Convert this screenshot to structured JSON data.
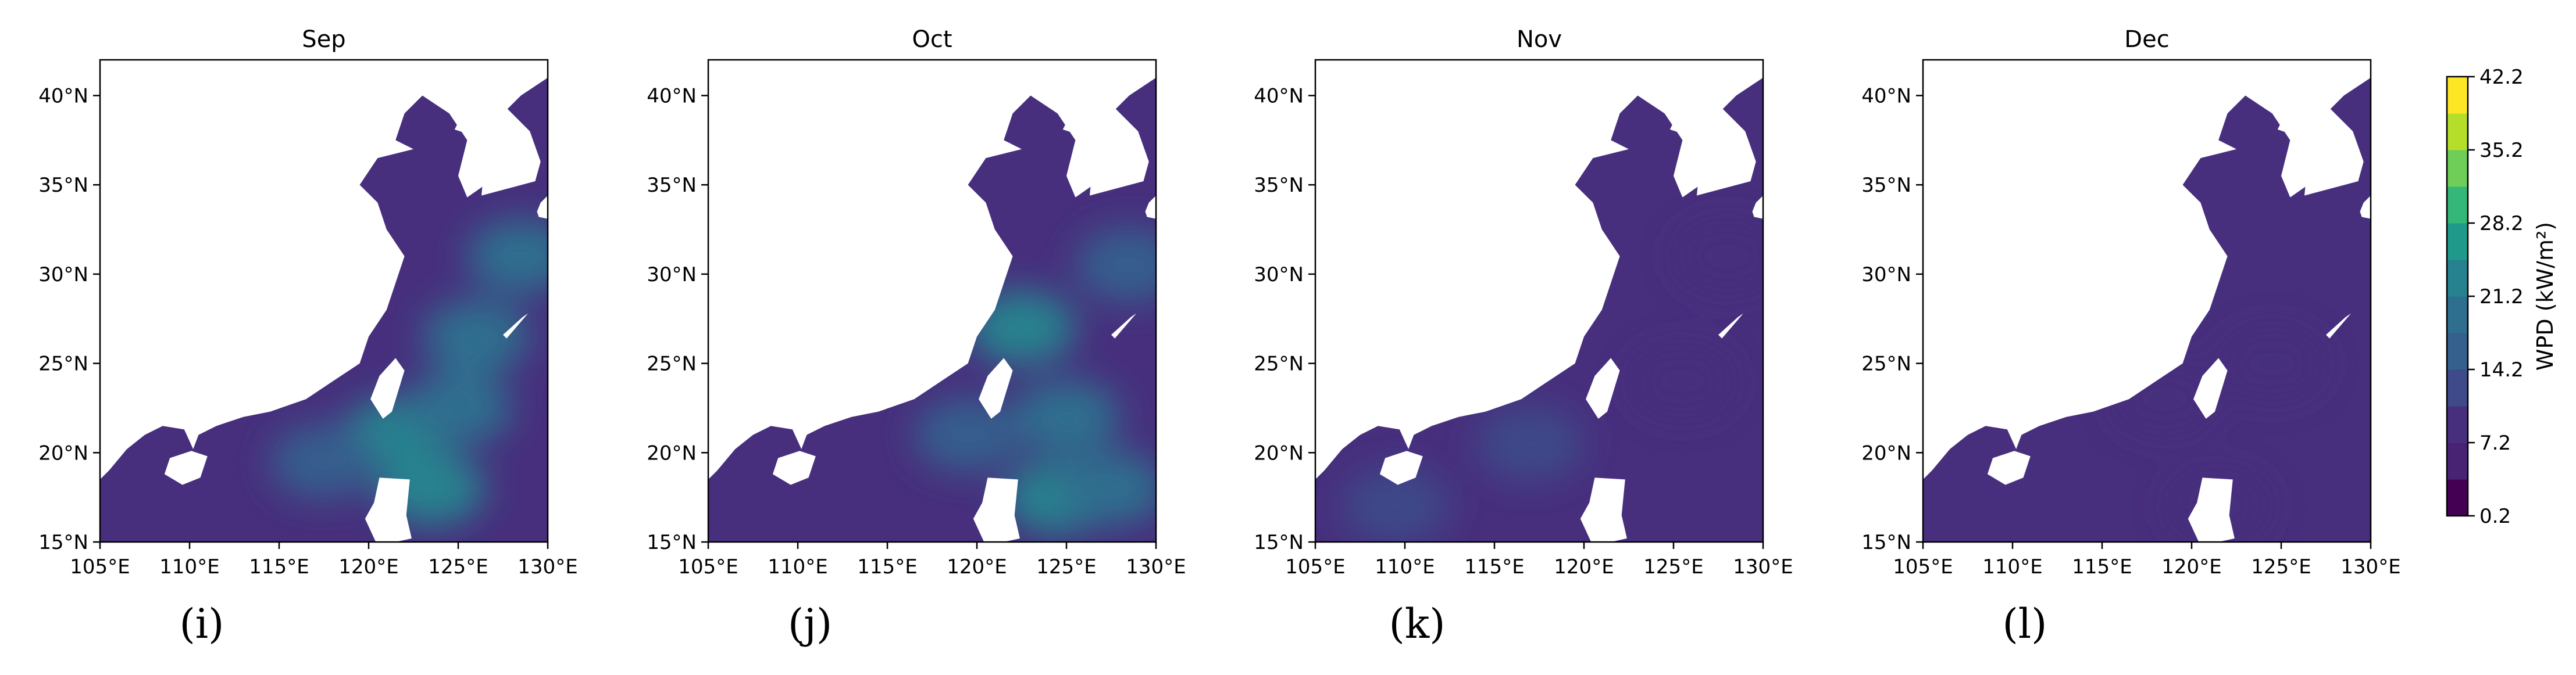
{
  "chart_data": [
    {
      "type": "heatmap",
      "title": "Sep",
      "panel_label": "(i)",
      "xlim": [
        105,
        130
      ],
      "ylim": [
        15,
        42
      ],
      "x_ticks": [
        "105°E",
        "110°E",
        "115°E",
        "120°E",
        "125°E",
        "130°E"
      ],
      "y_ticks": [
        "15°N",
        "20°N",
        "25°N",
        "30°N",
        "35°N",
        "40°N"
      ],
      "hotspots": [
        {
          "lon": 121.5,
          "lat": 21.0,
          "value": 21.2
        },
        {
          "lon": 123.5,
          "lat": 18.0,
          "value": 21.2
        },
        {
          "lon": 126.0,
          "lat": 26.5,
          "value": 17.7
        },
        {
          "lon": 128.5,
          "lat": 31.0,
          "value": 17.7
        },
        {
          "lon": 117.5,
          "lat": 19.5,
          "value": 14.2
        },
        {
          "lon": 125.0,
          "lat": 22.5,
          "value": 17.7
        }
      ]
    },
    {
      "type": "heatmap",
      "title": "Oct",
      "panel_label": "(j)",
      "xlim": [
        105,
        130
      ],
      "ylim": [
        15,
        42
      ],
      "x_ticks": [
        "105°E",
        "110°E",
        "115°E",
        "120°E",
        "125°E",
        "130°E"
      ],
      "y_ticks": [
        "15°N",
        "20°N",
        "25°N",
        "30°N",
        "35°N",
        "40°N"
      ],
      "hotspots": [
        {
          "lon": 122.5,
          "lat": 27.0,
          "value": 21.2
        },
        {
          "lon": 124.5,
          "lat": 17.5,
          "value": 21.2
        },
        {
          "lon": 127.5,
          "lat": 18.0,
          "value": 17.7
        },
        {
          "lon": 125.0,
          "lat": 22.0,
          "value": 17.7
        },
        {
          "lon": 128.5,
          "lat": 30.5,
          "value": 14.2
        },
        {
          "lon": 119.5,
          "lat": 21.0,
          "value": 14.2
        }
      ]
    },
    {
      "type": "heatmap",
      "title": "Nov",
      "panel_label": "(k)",
      "xlim": [
        105,
        130
      ],
      "ylim": [
        15,
        42
      ],
      "x_ticks": [
        "105°E",
        "110°E",
        "115°E",
        "120°E",
        "125°E",
        "130°E"
      ],
      "y_ticks": [
        "15°N",
        "20°N",
        "25°N",
        "30°N",
        "35°N",
        "40°N"
      ],
      "hotspots": [
        {
          "lon": 109.5,
          "lat": 17.0,
          "value": 10.7
        },
        {
          "lon": 117.0,
          "lat": 20.5,
          "value": 10.7
        },
        {
          "lon": 125.5,
          "lat": 24.0,
          "value": 7.2
        },
        {
          "lon": 128.0,
          "lat": 31.0,
          "value": 7.2
        }
      ]
    },
    {
      "type": "heatmap",
      "title": "Dec",
      "panel_label": "(l)",
      "xlim": [
        105,
        130
      ],
      "ylim": [
        15,
        42
      ],
      "x_ticks": [
        "105°E",
        "110°E",
        "115°E",
        "120°E",
        "125°E",
        "130°E"
      ],
      "y_ticks": [
        "15°N",
        "20°N",
        "25°N",
        "30°N",
        "35°N",
        "40°N"
      ],
      "hotspots": [
        {
          "lon": 118.5,
          "lat": 23.0,
          "value": 7.2
        },
        {
          "lon": 124.5,
          "lat": 25.0,
          "value": 7.2
        },
        {
          "lon": 121.5,
          "lat": 17.0,
          "value": 7.2
        }
      ]
    }
  ],
  "colorbar": {
    "label": "WPD (kW/m²)",
    "ticks": [
      "0.2",
      "7.2",
      "14.2",
      "21.2",
      "28.2",
      "35.2",
      "42.2"
    ],
    "min": 0.2,
    "max": 42.2,
    "levels": 12,
    "colors": [
      "#440154",
      "#482374",
      "#472f7d",
      "#3e4a89",
      "#355f8d",
      "#2e6e8e",
      "#26828e",
      "#1f9a8a",
      "#35b779",
      "#6ece58",
      "#b5de2b",
      "#fde725"
    ]
  }
}
